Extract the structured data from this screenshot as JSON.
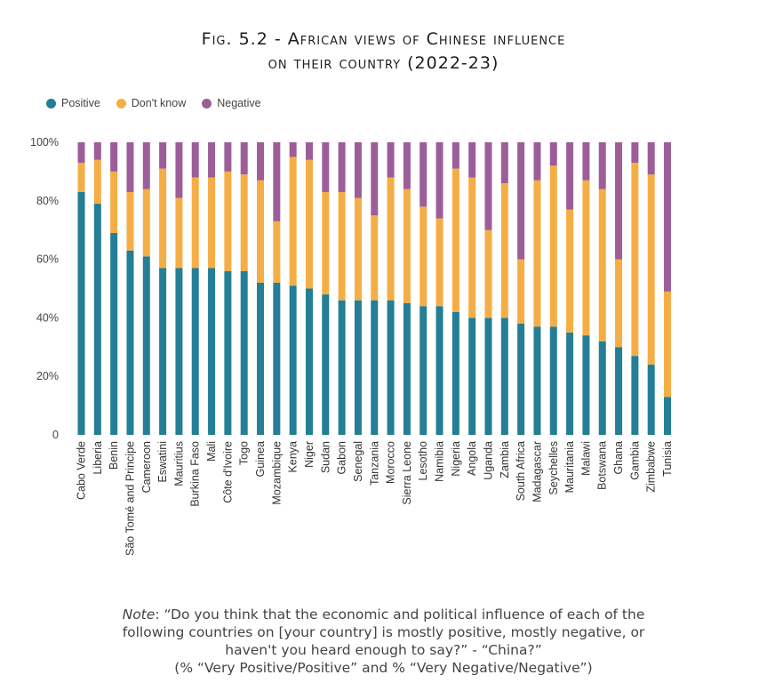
{
  "title_line1": "Fig. 5.2 - African views of Chinese influence",
  "title_line2": "on their country (2022-23)",
  "legend": [
    {
      "label": "Positive",
      "color": "#237e96"
    },
    {
      "label": "Don't know",
      "color": "#f5ae45"
    },
    {
      "label": "Negative",
      "color": "#9c5e99"
    }
  ],
  "note": {
    "prefix": "Note",
    "line1": ": “Do you think that the economic and political influence of each of the",
    "line2": "following countries on [your country] is mostly positive, mostly negative, or",
    "line3": "haven't you heard enough to say?” - “China?”",
    "line4": "(% “Very Positive/Positive” and % “Very Negative/Negative”)"
  },
  "chart_data": {
    "type": "bar",
    "stacked": true,
    "ylim": [
      0,
      100
    ],
    "ytick_labels": [
      "0",
      "20%",
      "40%",
      "60%",
      "80%",
      "100%"
    ],
    "yticks": [
      0,
      20,
      40,
      60,
      80,
      100
    ],
    "legend_position": "top-left",
    "grid": false,
    "categories": [
      "Cabo Verde",
      "Liberia",
      "Benin",
      "São Tomé and Principe",
      "Cameroon",
      "Eswatini",
      "Mauritius",
      "Burkina Faso",
      "Mali",
      "Côte d'Ivoire",
      "Togo",
      "Guinea",
      "Mozambique",
      "Kenya",
      "Niger",
      "Sudan",
      "Gabon",
      "Senegal",
      "Tanzania",
      "Morocco",
      "Sierra Leone",
      "Lesotho",
      "Namibia",
      "Nigeria",
      "Angola",
      "Uganda",
      "Zambia",
      "South Africa",
      "Madagascar",
      "Seychelles",
      "Mauritania",
      "Malawi",
      "Botswana",
      "Ghana",
      "Gambia",
      "Zimbabwe",
      "Tunisia"
    ],
    "series": [
      {
        "name": "Positive",
        "color": "#237e96",
        "values": [
          83,
          79,
          69,
          63,
          61,
          57,
          57,
          57,
          57,
          56,
          56,
          52,
          52,
          51,
          50,
          48,
          46,
          46,
          46,
          46,
          45,
          44,
          44,
          42,
          40,
          40,
          40,
          38,
          37,
          37,
          35,
          34,
          32,
          30,
          27,
          24,
          13
        ]
      },
      {
        "name": "Don't know",
        "color": "#f5ae45",
        "values": [
          10,
          15,
          21,
          20,
          23,
          34,
          24,
          31,
          31,
          34,
          33,
          35,
          21,
          44,
          44,
          35,
          37,
          35,
          29,
          42,
          39,
          34,
          30,
          49,
          48,
          30,
          46,
          22,
          50,
          55,
          42,
          53,
          52,
          30,
          66,
          65,
          36
        ]
      },
      {
        "name": "Negative",
        "color": "#9c5e99",
        "values": [
          7,
          6,
          10,
          17,
          16,
          9,
          19,
          12,
          12,
          10,
          11,
          13,
          27,
          5,
          6,
          17,
          17,
          19,
          25,
          12,
          16,
          22,
          26,
          9,
          12,
          30,
          14,
          40,
          13,
          8,
          23,
          13,
          16,
          40,
          7,
          11,
          51
        ]
      }
    ]
  }
}
